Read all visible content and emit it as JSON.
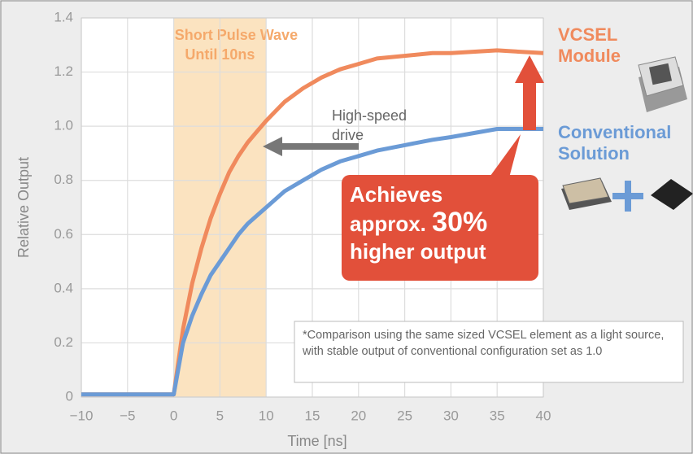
{
  "chart_data": {
    "type": "line",
    "x_label": "Time [ns]",
    "y_label": "Relative Output",
    "x": [
      -10,
      -5,
      -1,
      0,
      1,
      2,
      3,
      4,
      5,
      6,
      7,
      8,
      9,
      10,
      12,
      14,
      16,
      18,
      20,
      22,
      25,
      28,
      30,
      35,
      40
    ],
    "series": [
      {
        "name": "VCSEL Module",
        "color": "#f08a5d",
        "values": [
          0.01,
          0.01,
          0.01,
          0.01,
          0.25,
          0.42,
          0.55,
          0.66,
          0.75,
          0.83,
          0.89,
          0.94,
          0.98,
          1.02,
          1.09,
          1.14,
          1.18,
          1.21,
          1.23,
          1.25,
          1.26,
          1.27,
          1.27,
          1.28,
          1.27
        ]
      },
      {
        "name": "Conventional Solution",
        "color": "#6b9bd6",
        "values": [
          0.01,
          0.01,
          0.01,
          0.01,
          0.2,
          0.3,
          0.38,
          0.45,
          0.5,
          0.55,
          0.6,
          0.64,
          0.67,
          0.7,
          0.76,
          0.8,
          0.84,
          0.87,
          0.89,
          0.91,
          0.93,
          0.95,
          0.96,
          0.99,
          0.99
        ]
      }
    ],
    "xlim": [
      -10,
      40
    ],
    "xticks": [
      {
        "value": -10,
        "label": "−10"
      },
      {
        "value": -5,
        "label": "−5"
      },
      0,
      5,
      10,
      15,
      20,
      25,
      30,
      35,
      40
    ],
    "ylim": [
      0,
      1.4
    ],
    "yticks": [
      0,
      0.2,
      0.4,
      0.6,
      0.8,
      {
        "value": 1,
        "label": "1.0"
      },
      1.2,
      1.4
    ],
    "grid": true,
    "highlight": {
      "range": [
        0,
        10
      ],
      "label": [
        "Short Pulse Wave",
        "Until 10ns"
      ]
    },
    "drive_label": [
      "High-speed",
      "drive"
    ],
    "callout": [
      "Achieves",
      "approx.",
      "30%",
      "higher output"
    ],
    "footnote": "*Comparison using the same sized VCSEL element as a light source, with stable output of conventional configuration set as 1.0"
  }
}
